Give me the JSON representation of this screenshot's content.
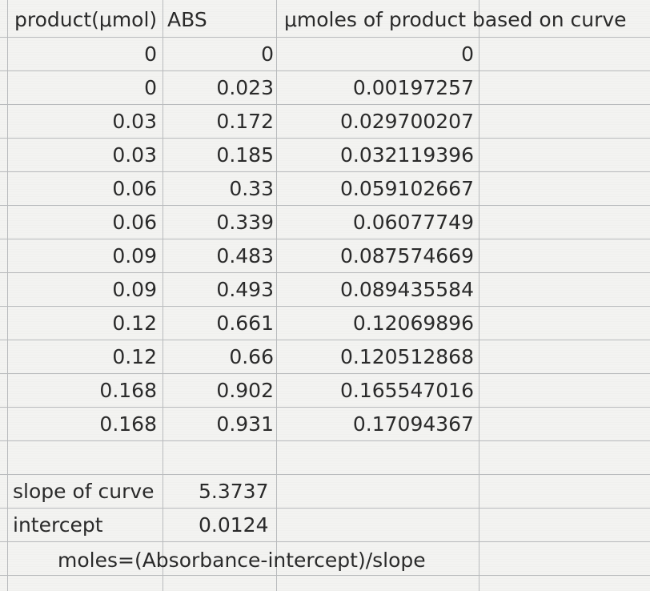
{
  "headers": {
    "product": "product(μmol)",
    "abs": "ABS",
    "umoles": "μmoles of product based on curve"
  },
  "rows": [
    {
      "product": "0",
      "abs": "0",
      "umoles": "0"
    },
    {
      "product": "0",
      "abs": "0.023",
      "umoles": "0.00197257"
    },
    {
      "product": "0.03",
      "abs": "0.172",
      "umoles": "0.029700207"
    },
    {
      "product": "0.03",
      "abs": "0.185",
      "umoles": "0.032119396"
    },
    {
      "product": "0.06",
      "abs": "0.33",
      "umoles": "0.059102667"
    },
    {
      "product": "0.06",
      "abs": "0.339",
      "umoles": "0.06077749"
    },
    {
      "product": "0.09",
      "abs": "0.483",
      "umoles": "0.087574669"
    },
    {
      "product": "0.09",
      "abs": "0.493",
      "umoles": "0.089435584"
    },
    {
      "product": "0.12",
      "abs": "0.661",
      "umoles": "0.12069896"
    },
    {
      "product": "0.12",
      "abs": "0.66",
      "umoles": "0.120512868"
    },
    {
      "product": "0.168",
      "abs": "0.902",
      "umoles": "0.165547016"
    },
    {
      "product": "0.168",
      "abs": "0.931",
      "umoles": "0.17094367"
    }
  ],
  "footer": {
    "slope_label": "slope of curve",
    "slope_value": "5.3737",
    "intercept_label": "intercept",
    "intercept_value": "0.0124",
    "formula": "moles=(Absorbance-intercept)/slope"
  }
}
